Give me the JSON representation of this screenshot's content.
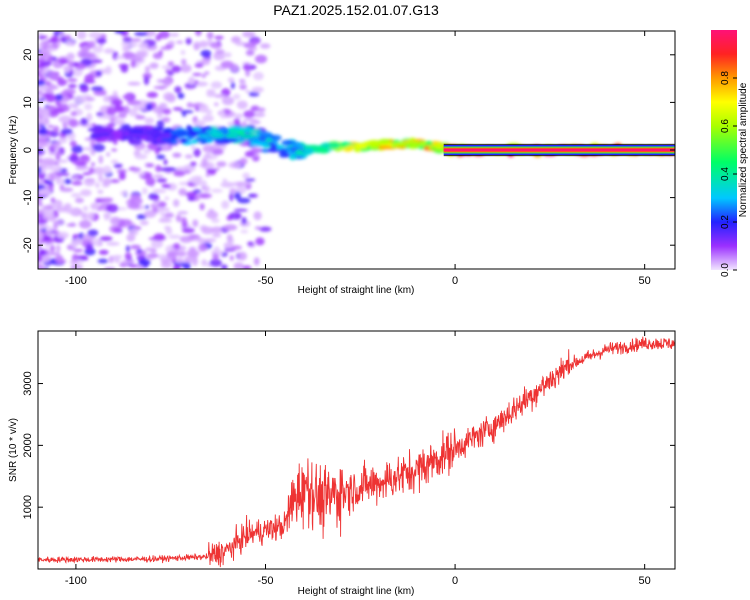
{
  "title": "PAZ1.2025.152.01.07.G13",
  "chart_data": [
    {
      "type": "heatmap",
      "title": "PAZ1.2025.152.01.07.G13",
      "xlabel": "Height of straight line (km)",
      "ylabel": "Frequency (Hz)",
      "xlim": [
        -110,
        58
      ],
      "ylim": [
        -25,
        25
      ],
      "xticks": [
        -100,
        -50,
        0,
        50
      ],
      "yticks": [
        -20,
        -10,
        0,
        10,
        20
      ],
      "colorbar": {
        "label": "Normalized spectral amplitude",
        "range": [
          0,
          1
        ],
        "ticks": [
          0.0,
          0.2,
          0.4,
          0.6,
          0.8
        ],
        "colormap": "rainbow"
      },
      "ridge": {
        "x": [
          -90,
          -80,
          -70,
          -60,
          -55,
          -50,
          -45,
          -40,
          -35,
          -30,
          -20,
          -10,
          -3,
          0,
          20,
          40,
          58
        ],
        "frequency": [
          3.5,
          3,
          3,
          3.5,
          3,
          2,
          0.5,
          0,
          0.5,
          0.8,
          0.8,
          1.5,
          0.5,
          0,
          0,
          0,
          0
        ],
        "amplitude": [
          0.15,
          0.2,
          0.3,
          0.35,
          0.4,
          0.35,
          0.3,
          0.4,
          0.5,
          0.7,
          0.75,
          0.8,
          0.85,
          1.0,
          1.0,
          1.0,
          1.0
        ]
      }
    },
    {
      "type": "line",
      "xlabel": "Height of straight line (km)",
      "ylabel": "SNR (10 * v/v)",
      "xlim": [
        -110,
        58
      ],
      "ylim": [
        0,
        3850
      ],
      "xticks": [
        -100,
        -50,
        0,
        50
      ],
      "yticks": [
        1000,
        2000,
        3000
      ],
      "color": "#ee3333",
      "trend": {
        "x": [
          -110,
          -80,
          -65,
          -60,
          -55,
          -45,
          -42,
          -38,
          -35,
          -30,
          -20,
          -10,
          0,
          10,
          20,
          30,
          40,
          50,
          58
        ],
        "y": [
          150,
          160,
          200,
          300,
          550,
          700,
          1200,
          1300,
          1100,
          1250,
          1400,
          1600,
          1950,
          2300,
          2800,
          3300,
          3550,
          3650,
          3650
        ]
      }
    }
  ]
}
